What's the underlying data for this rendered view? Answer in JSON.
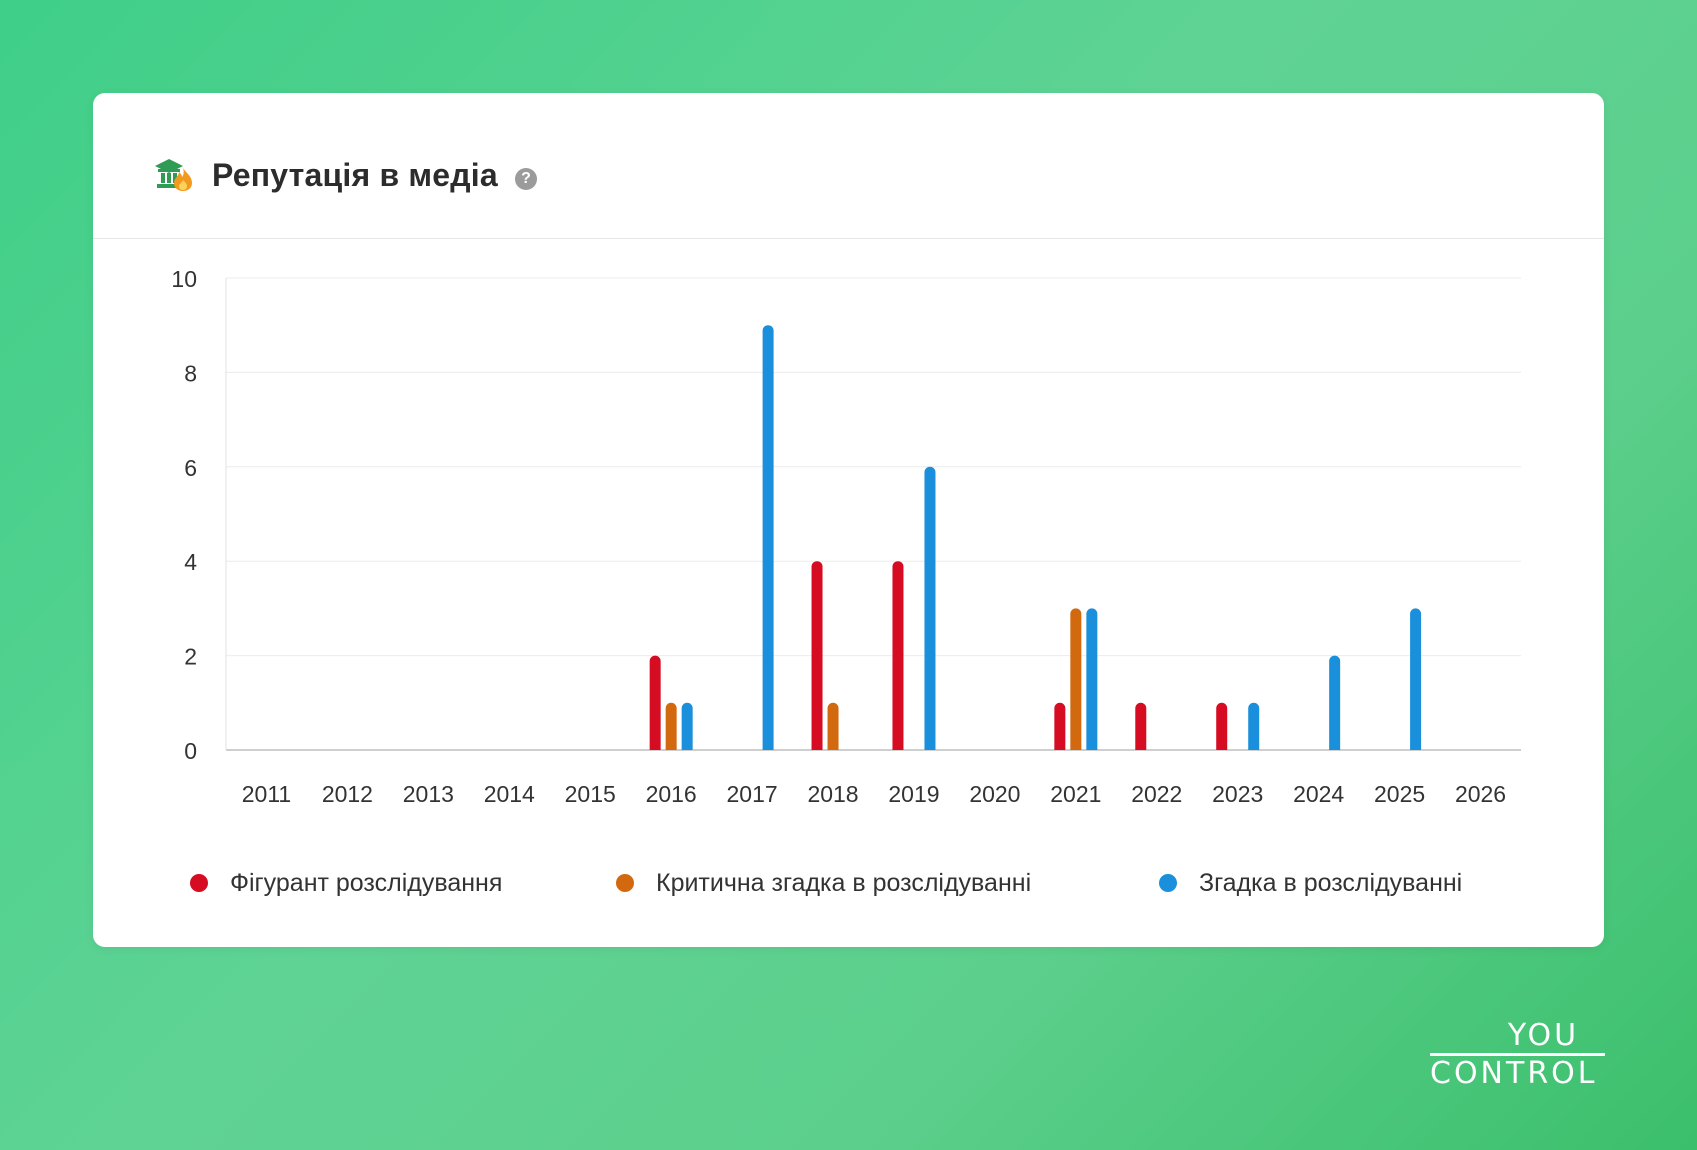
{
  "card": {
    "title": "Репутація в медіа",
    "help_glyph": "?",
    "title_icon": "reputation-media-icon"
  },
  "chart_data": {
    "type": "bar",
    "categories": [
      "2011",
      "2012",
      "2013",
      "2014",
      "2015",
      "2016",
      "2017",
      "2018",
      "2019",
      "2020",
      "2021",
      "2022",
      "2023",
      "2024",
      "2025",
      "2026"
    ],
    "ylim": [
      0,
      10
    ],
    "yticks": [
      0,
      2,
      4,
      6,
      8,
      10
    ],
    "grid": true,
    "legend_position": "bottom",
    "series": [
      {
        "name": "Фігурант розслідування",
        "color": "#d50c22",
        "values": [
          0,
          0,
          0,
          0,
          0,
          2,
          0,
          4,
          4,
          0,
          1,
          1,
          1,
          0,
          0,
          0
        ]
      },
      {
        "name": "Критична згадка в розслідуванні",
        "color": "#d2690e",
        "values": [
          0,
          0,
          0,
          0,
          0,
          1,
          0,
          1,
          0,
          0,
          3,
          0,
          0,
          0,
          0,
          0
        ]
      },
      {
        "name": "Згадка в розслідуванні",
        "color": "#1a8fdb",
        "values": [
          0,
          0,
          0,
          0,
          0,
          1,
          9,
          0,
          6,
          0,
          3,
          0,
          1,
          2,
          3,
          0
        ]
      }
    ]
  },
  "brand": {
    "logo_top": "YOU",
    "logo_bottom": "CONTROL"
  }
}
